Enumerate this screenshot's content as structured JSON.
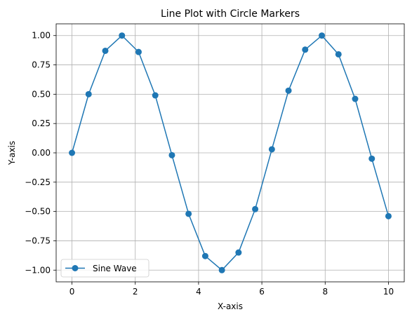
{
  "chart_data": {
    "type": "line",
    "title": "Line Plot with Circle Markers",
    "xlabel": "X-axis",
    "ylabel": "Y-axis",
    "xlim": [
      -0.5,
      10.5
    ],
    "ylim": [
      -1.1,
      1.1
    ],
    "grid": true,
    "legend_position": "lower-left",
    "x_ticks": [
      0,
      2,
      4,
      6,
      8,
      10
    ],
    "x_tick_labels": [
      "0",
      "2",
      "4",
      "6",
      "8",
      "10"
    ],
    "y_ticks": [
      1.0,
      0.75,
      0.5,
      0.25,
      0.0,
      -0.25,
      -0.5,
      -0.75,
      -1.0
    ],
    "y_tick_labels": [
      "1.00",
      "0.75",
      "0.50",
      "0.25",
      "0.00",
      "−0.25",
      "−0.50",
      "−0.75",
      "−1.00"
    ],
    "series": [
      {
        "name": "Sine Wave",
        "color": "#1f77b4",
        "marker": "circle",
        "x": [
          0,
          0.526,
          1.053,
          1.579,
          2.105,
          2.632,
          3.158,
          3.684,
          4.211,
          4.737,
          5.263,
          5.789,
          6.316,
          6.842,
          7.368,
          7.895,
          8.421,
          8.947,
          9.474,
          10.0
        ],
        "y": [
          0.0,
          0.5,
          0.87,
          1.0,
          0.86,
          0.49,
          -0.02,
          -0.52,
          -0.88,
          -1.0,
          -0.85,
          -0.48,
          0.03,
          0.53,
          0.88,
          1.0,
          0.84,
          0.46,
          -0.05,
          -0.54
        ]
      }
    ]
  }
}
